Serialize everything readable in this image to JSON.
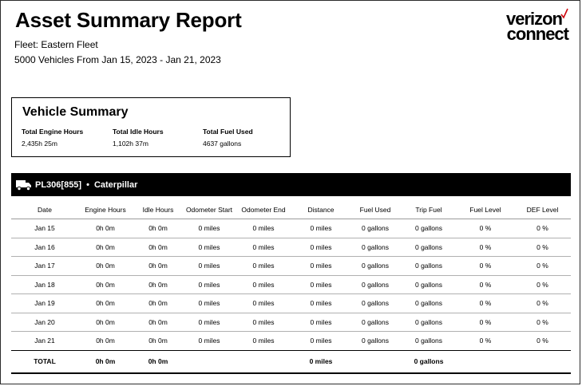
{
  "report": {
    "title": "Asset Summary Report",
    "fleet": "Fleet: Eastern Fleet",
    "range": "5000 Vehicles From Jan 15, 2023 - Jan 21, 2023"
  },
  "logo": {
    "line1": "verizon",
    "line2": "connect",
    "check_color": "#cd040b"
  },
  "summary": {
    "title": "Vehicle Summary",
    "stats": [
      {
        "label": "Total Engine Hours",
        "value": "2,435h 25m"
      },
      {
        "label": "Total Idle Hours",
        "value": "1,102h 37m"
      },
      {
        "label": "Total Fuel Used",
        "value": "4637 gallons"
      }
    ]
  },
  "vehicle": {
    "icon": "truck-icon",
    "id": "PL306[855]",
    "separator": "•",
    "make": "Caterpillar"
  },
  "table": {
    "headers": [
      "Date",
      "Engine Hours",
      "Idle Hours",
      "Odometer Start",
      "Odometer End",
      "Distance",
      "Fuel Used",
      "Trip Fuel",
      "Fuel Level",
      "DEF Level"
    ],
    "rows": [
      [
        "Jan 15",
        "0h 0m",
        "0h 0m",
        "0 miles",
        "0 miles",
        "0 miles",
        "0 gallons",
        "0 gallons",
        "0 %",
        "0 %"
      ],
      [
        "Jan 16",
        "0h 0m",
        "0h 0m",
        "0 miles",
        "0 miles",
        "0 miles",
        "0 gallons",
        "0 gallons",
        "0 %",
        "0 %"
      ],
      [
        "Jan 17",
        "0h 0m",
        "0h 0m",
        "0 miles",
        "0 miles",
        "0 miles",
        "0 gallons",
        "0 gallons",
        "0 %",
        "0 %"
      ],
      [
        "Jan 18",
        "0h 0m",
        "0h 0m",
        "0 miles",
        "0 miles",
        "0 miles",
        "0 gallons",
        "0 gallons",
        "0 %",
        "0 %"
      ],
      [
        "Jan 19",
        "0h 0m",
        "0h 0m",
        "0 miles",
        "0 miles",
        "0 miles",
        "0 gallons",
        "0 gallons",
        "0 %",
        "0 %"
      ],
      [
        "Jan 20",
        "0h 0m",
        "0h 0m",
        "0 miles",
        "0 miles",
        "0 miles",
        "0 gallons",
        "0 gallons",
        "0 %",
        "0 %"
      ],
      [
        "Jan 21",
        "0h 0m",
        "0h 0m",
        "0 miles",
        "0 miles",
        "0 miles",
        "0 gallons",
        "0 gallons",
        "0 %",
        "0 %"
      ]
    ],
    "total": [
      "TOTAL",
      "0h 0m",
      "0h 0m",
      "",
      "",
      "0 miles",
      "",
      "0 gallons",
      "",
      ""
    ]
  }
}
